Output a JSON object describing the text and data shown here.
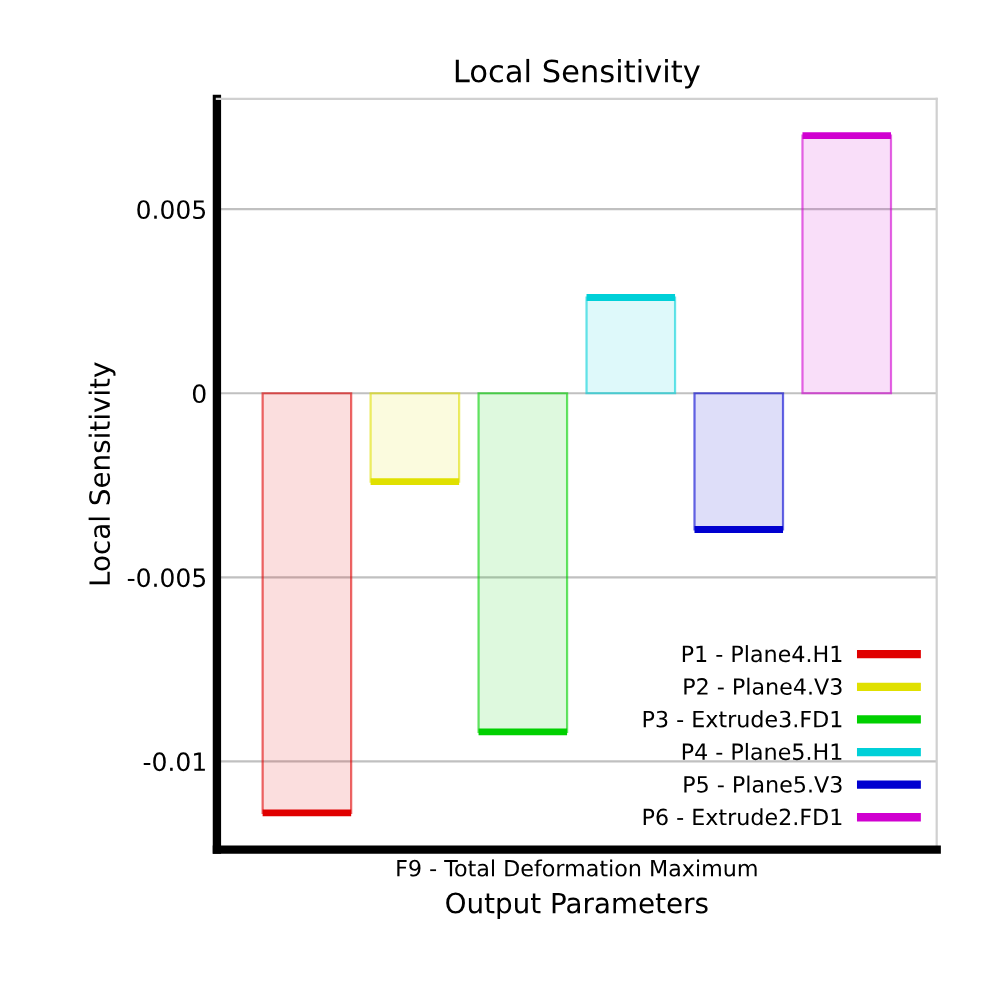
{
  "chart_data": {
    "type": "bar",
    "title": "Local Sensitivity",
    "xlabel": "Output Parameters",
    "ylabel": "Local Sensitivity",
    "categories": [
      "F9 - Total Deformation Maximum"
    ],
    "series": [
      {
        "name": "P1 - Plane4.H1",
        "color": "#e00000",
        "values": [
          -0.0114
        ]
      },
      {
        "name": "P2 - Plane4.V3",
        "color": "#e0e000",
        "values": [
          -0.0024
        ]
      },
      {
        "name": "P3 - Extrude3.FD1",
        "color": "#00d000",
        "values": [
          -0.0092
        ]
      },
      {
        "name": "P4 - Plane5.H1",
        "color": "#00d0d8",
        "values": [
          0.0026
        ]
      },
      {
        "name": "P5 - Plane5.V3",
        "color": "#0000d0",
        "values": [
          -0.0037
        ]
      },
      {
        "name": "P6 - Extrude2.FD1",
        "color": "#d000d0",
        "values": [
          0.007
        ]
      }
    ],
    "ylim": [
      -0.0124,
      0.008
    ],
    "yticks": [
      -0.01,
      -0.005,
      0,
      0.005
    ],
    "grid": "y",
    "legend": "bottom right"
  }
}
